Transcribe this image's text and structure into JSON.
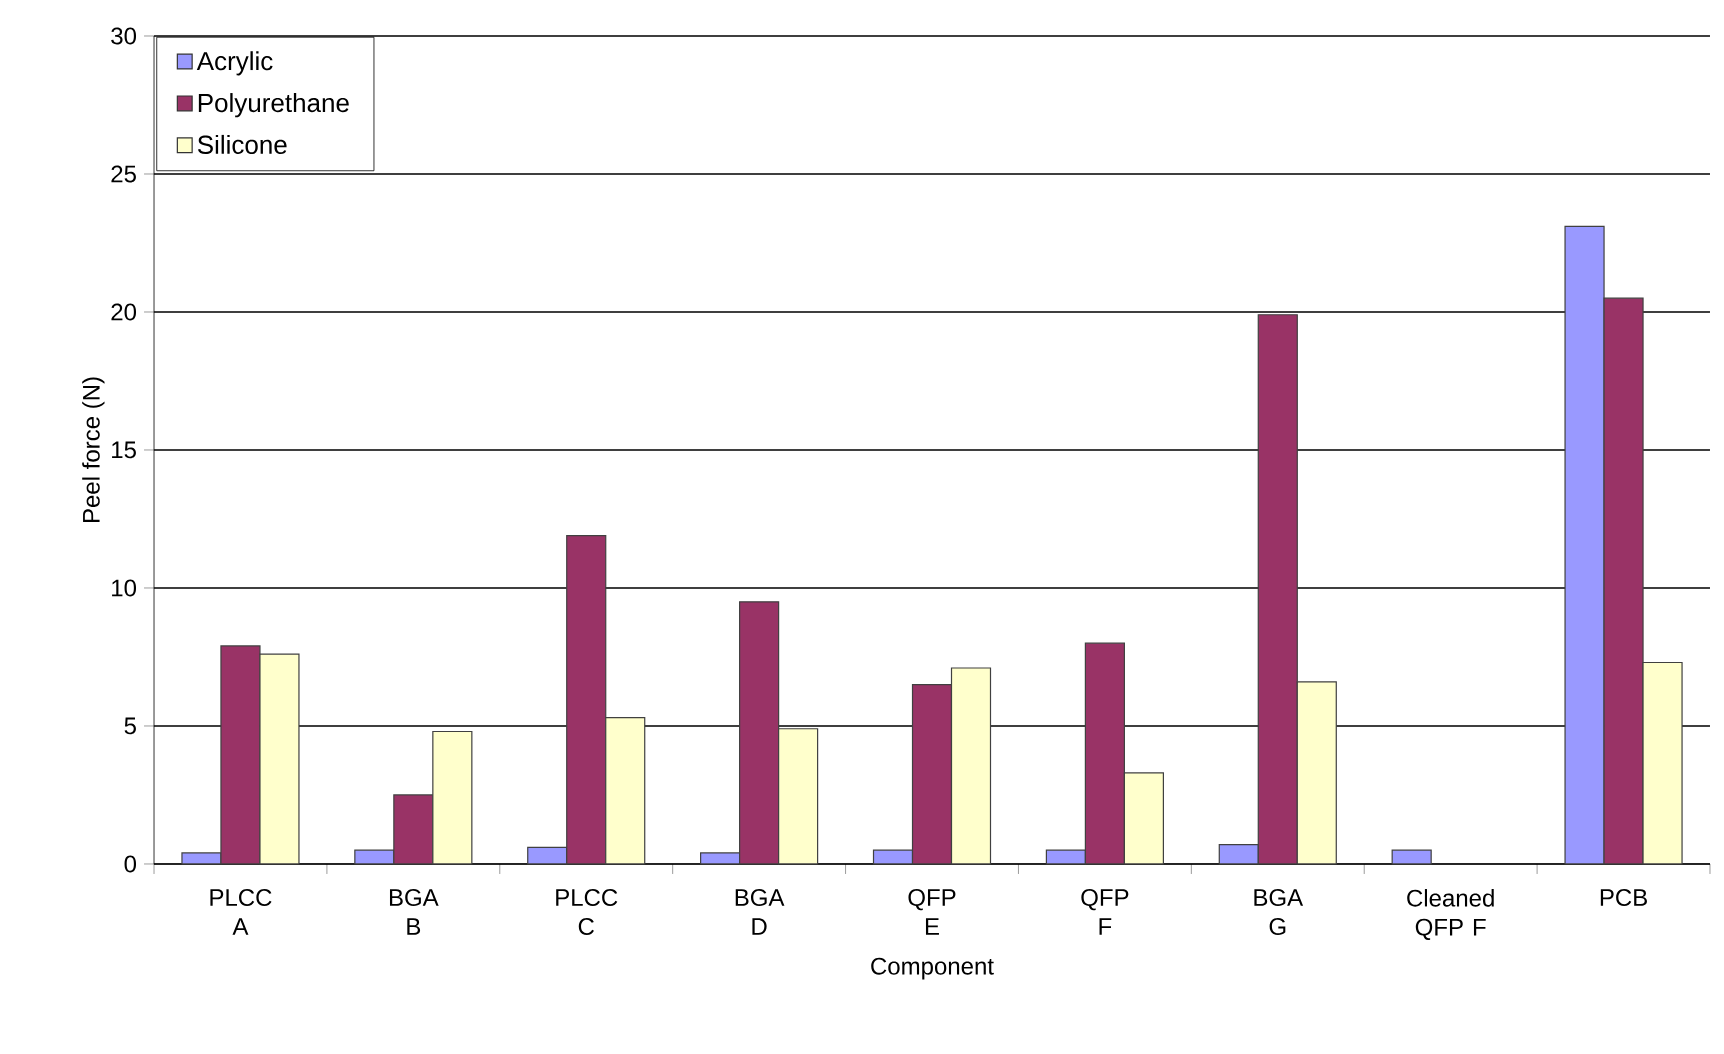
{
  "chart_data": {
    "type": "bar",
    "xlabel": "Component",
    "ylabel": "Peel force (N)",
    "categories": [
      "PLCC A",
      "BGA B",
      "PLCC C",
      "BGA D",
      "QFP E",
      "QFP F",
      "BGA G",
      "Cleaned QFP F",
      "PCB"
    ],
    "series": [
      {
        "name": "Acrylic",
        "color": "#9999ff",
        "values": [
          0.4,
          0.5,
          0.6,
          0.4,
          0.5,
          0.5,
          0.7,
          0.5,
          23.1
        ]
      },
      {
        "name": "Polyurethane",
        "color": "#993366",
        "values": [
          7.9,
          2.5,
          11.9,
          9.5,
          6.5,
          8.0,
          19.9,
          null,
          20.5
        ]
      },
      {
        "name": "Silicone",
        "color": "#ffffcc",
        "values": [
          7.6,
          4.8,
          5.3,
          4.9,
          7.1,
          3.3,
          6.6,
          null,
          7.3
        ]
      }
    ],
    "ylim": [
      0,
      30
    ],
    "yticks": [
      0,
      5,
      10,
      15,
      20,
      25,
      30
    ],
    "grid": "y",
    "legend": "top left"
  }
}
